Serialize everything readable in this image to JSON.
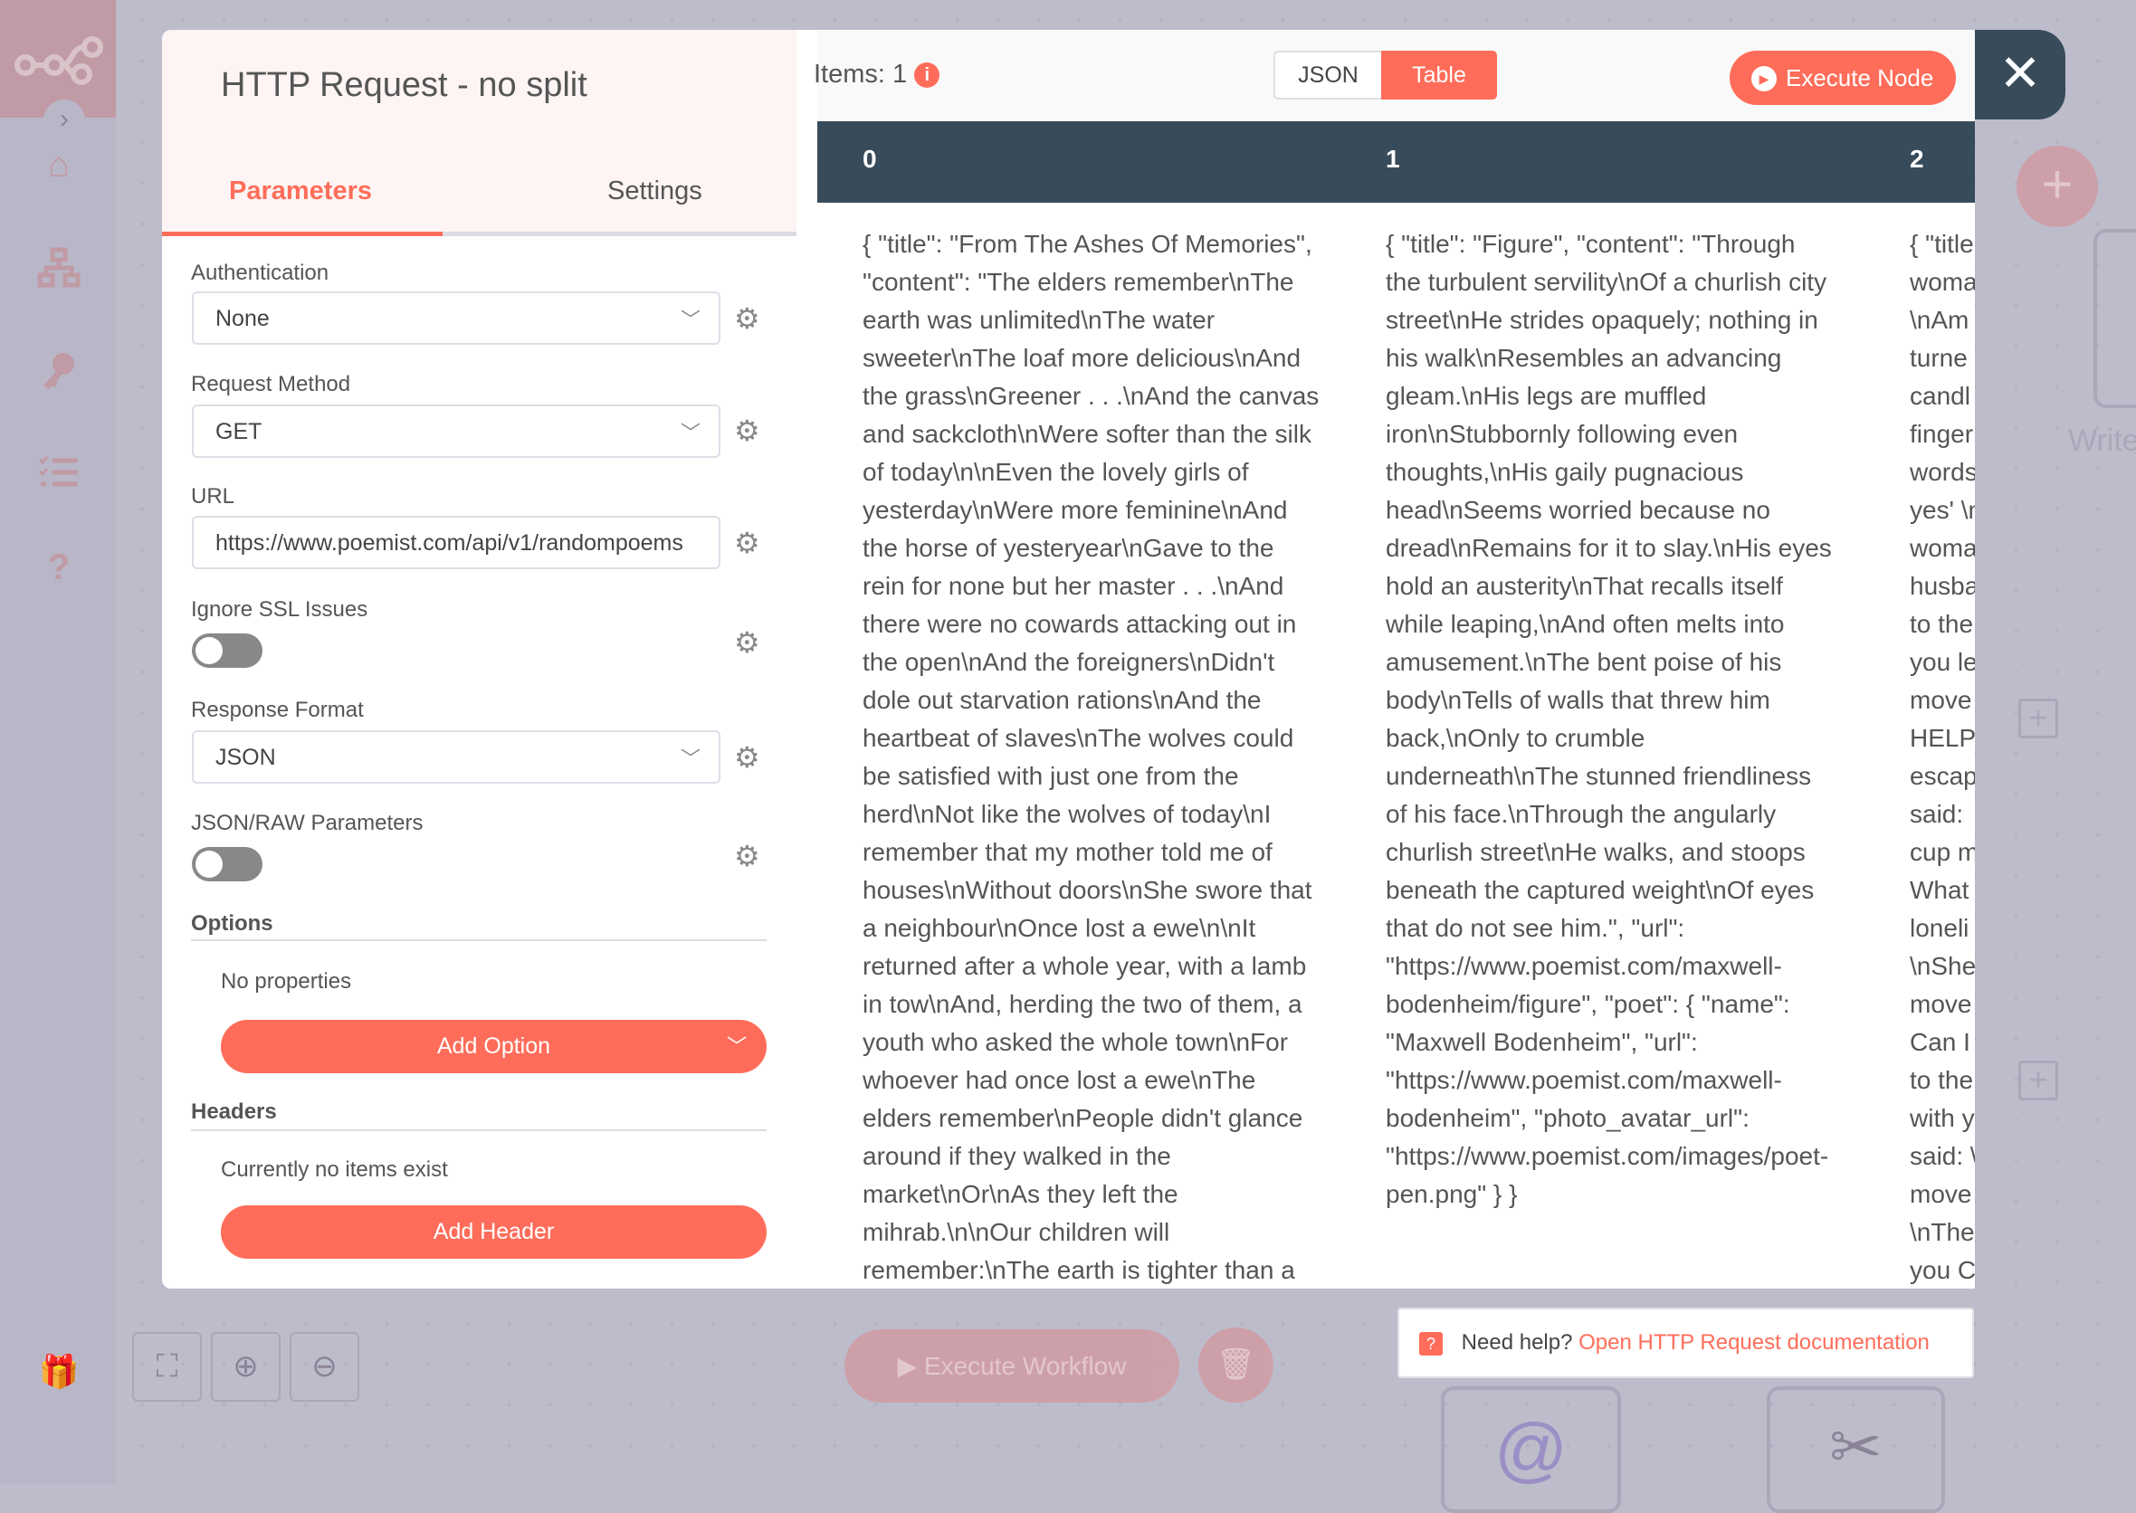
{
  "node": {
    "title": "HTTP Request - no split",
    "tabs": [
      "Parameters",
      "Settings"
    ]
  },
  "params": {
    "authentication": {
      "label": "Authentication",
      "value": "None"
    },
    "request_method": {
      "label": "Request Method",
      "value": "GET"
    },
    "url": {
      "label": "URL",
      "value": "https://www.poemist.com/api/v1/randompoems"
    },
    "ignore_ssl": {
      "label": "Ignore SSL Issues",
      "on": false
    },
    "response_format": {
      "label": "Response Format",
      "value": "JSON"
    },
    "json_raw": {
      "label": "JSON/RAW Parameters",
      "on": false
    },
    "options": {
      "title": "Options",
      "empty": "No properties",
      "button": "Add Option"
    },
    "headers": {
      "title": "Headers",
      "empty": "Currently no items exist",
      "button": "Add Header"
    }
  },
  "output": {
    "items_label": "Items: 1",
    "view_json": "JSON",
    "view_table": "Table",
    "active_view": "Table",
    "execute_node": "Execute Node",
    "columns": [
      "0",
      "1",
      "2"
    ],
    "cells": [
      [
        "{ \"title\": \"From The Ashes Of Memories\",",
        "\"content\": \"The elders remember\\nThe",
        "earth was unlimited\\nThe water",
        "sweeter\\nThe loaf more delicious\\nAnd",
        "the grass\\nGreener . . .\\nAnd the canvas",
        "and sackcloth\\nWere softer than the silk",
        "of today\\n\\nEven the lovely girls of",
        "yesterday\\nWere more feminine\\nAnd",
        "the horse of yesteryear\\nGave to the",
        "rein for none but her master . . .\\nAnd",
        "there were no cowards attacking out in",
        "the open\\nAnd the foreigners\\nDidn't",
        "dole out starvation rations\\nAnd the",
        "heartbeat of slaves\\nThe wolves could",
        "be satisfied with just one from the",
        "herd\\nNot like the wolves of today\\nI",
        "remember that my mother told me of",
        "houses\\nWithout doors\\nShe swore that",
        "a neighbour\\nOnce lost a ewe\\n\\nIt",
        "returned after a whole year, with a lamb",
        "in tow\\nAnd, herding the two of them, a",
        "youth who asked the whole town\\nFor",
        "whoever had once lost a ewe\\nThe",
        "elders remember\\nPeople didn't glance",
        "around if they walked in the",
        "market\\nOr\\nAs they left the",
        "mihrab.\\n\\nOur children will",
        "remember:\\nThe earth is tighter than a"
      ],
      [
        "{ \"title\": \"Figure\", \"content\": \"Through",
        "the turbulent servility\\nOf a churlish city",
        "street\\nHe strides opaquely; nothing in",
        "his walk\\nResembles an advancing",
        "gleam.\\nHis legs are muffled",
        "iron\\nStubbornly following even",
        "thoughts,\\nHis gaily pugnacious",
        "head\\nSeems worried because no",
        "dread\\nRemains for it to slay.\\nHis eyes",
        "hold an austerity\\nThat recalls itself",
        "while leaping,\\nAnd often melts into",
        "amusement.\\nThe bent poise of his",
        "body\\nTells of walls that threw him",
        "back,\\nOnly to crumble",
        "underneath\\nThe stunned friendliness",
        "of his face.\\nThrough the angularly",
        "churlish street\\nHe walks, and stoops",
        "beneath the captured weight\\nOf eyes",
        "that do not see him.\", \"url\":",
        "\"https://www.poemist.com/maxwell-",
        "bodenheim/figure\", \"poet\": { \"name\":",
        "\"Maxwell Bodenheim\", \"url\":",
        "\"https://www.poemist.com/maxwell-",
        "bodenheim\", \"photo_avatar_url\":",
        "\"https://www.poemist.com/images/poet-",
        "pen.png\" } }"
      ],
      [
        "{ \"title",
        "woma",
        "\\nAm",
        "turne",
        "candl",
        "finger",
        "words",
        "yes' \\n",
        "woma",
        "husba",
        "to the",
        "you le",
        "move",
        "HELP",
        "escap",
        "said:",
        "cup m",
        "What",
        "loneli",
        "\\nShe",
        "move",
        "Can I",
        "to the",
        "with y",
        "said: \\",
        "move",
        "\\nThe",
        "you C"
      ]
    ]
  },
  "canvas": {
    "execute_workflow": "Execute Workflow",
    "node_label": "Write",
    "help_prefix": "Need help?",
    "help_link": "Open HTTP Request documentation"
  },
  "colors": {
    "accent": "#ff6d5a",
    "dark": "#384b5a",
    "overlay": "#bdbccb"
  }
}
